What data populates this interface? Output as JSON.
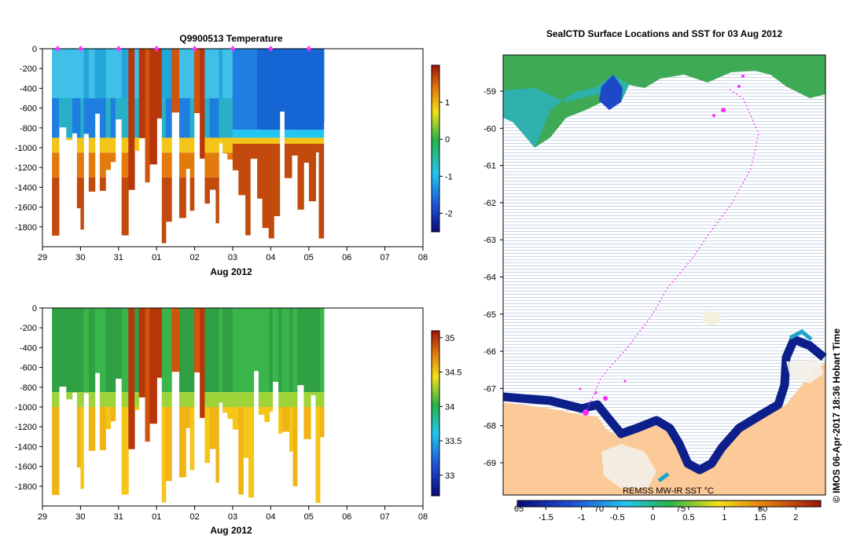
{
  "chart_data": [
    {
      "type": "heatmap",
      "title": "Q9900513  Temperature",
      "xlabel": "Aug 2012",
      "ylabel": "",
      "x_ticks": [
        "29",
        "30",
        "31",
        "01",
        "02",
        "03",
        "04",
        "05",
        "06",
        "07",
        "08"
      ],
      "y_ticks": [
        0,
        -200,
        -400,
        -600,
        -800,
        -1000,
        -1200,
        -1400,
        -1600,
        -1800
      ],
      "ylim": [
        -2000,
        0
      ],
      "colorbar": {
        "ticks": [
          1,
          0,
          -1,
          -2
        ],
        "range": [
          -2.5,
          2
        ]
      },
      "profile_days": [
        29.4,
        30.0,
        31.0,
        32.0,
        33.0,
        34.0,
        35.0,
        36.0
      ],
      "colors": {
        "deep": "#c24a0c",
        "surface": "#22a6d8",
        "cold": "#1566d4"
      }
    },
    {
      "type": "heatmap",
      "title": "",
      "xlabel": "Aug 2012",
      "ylabel": "",
      "x_ticks": [
        "29",
        "30",
        "31",
        "01",
        "02",
        "03",
        "04",
        "05",
        "06",
        "07",
        "08"
      ],
      "y_ticks": [
        0,
        -200,
        -400,
        -600,
        -800,
        -1000,
        -1200,
        -1400,
        -1600,
        -1800
      ],
      "ylim": [
        -2000,
        0
      ],
      "colorbar": {
        "ticks": [
          35,
          34.5,
          34,
          33.5,
          33
        ],
        "range": [
          32.7,
          35.1
        ]
      },
      "colors": {
        "fresh": "#3ab54a",
        "salty": "#f5c518",
        "high": "#c24a0c"
      }
    },
    {
      "type": "heatmap",
      "title": "SealCTD Surface Locations and SST for 03 Aug 2012",
      "xlabel": "",
      "ylabel": "",
      "y_ticks": [
        "-59",
        "-60",
        "-61",
        "-62",
        "-63",
        "-64",
        "-65",
        "-66",
        "-67",
        "-68",
        "-69"
      ],
      "x_ticks_bottom": [
        "65",
        "70",
        "75",
        "80"
      ],
      "source_label": "REMSS MW-IR SST °C",
      "colorbar": {
        "ticks": [
          "-1.5",
          "-1",
          "-0.5",
          "0",
          "0.5",
          "1",
          "1.5",
          "2"
        ],
        "range": [
          -1.9,
          2.35
        ]
      },
      "side_label": "© IMOS 06-Apr-2017 18:36 Hobart Time",
      "colors": {
        "ocean": "#e8f0f6",
        "land": "#fcc998",
        "ice": "#0d1f8a",
        "warm": "#47b447",
        "track": "#ff2bff"
      }
    }
  ]
}
